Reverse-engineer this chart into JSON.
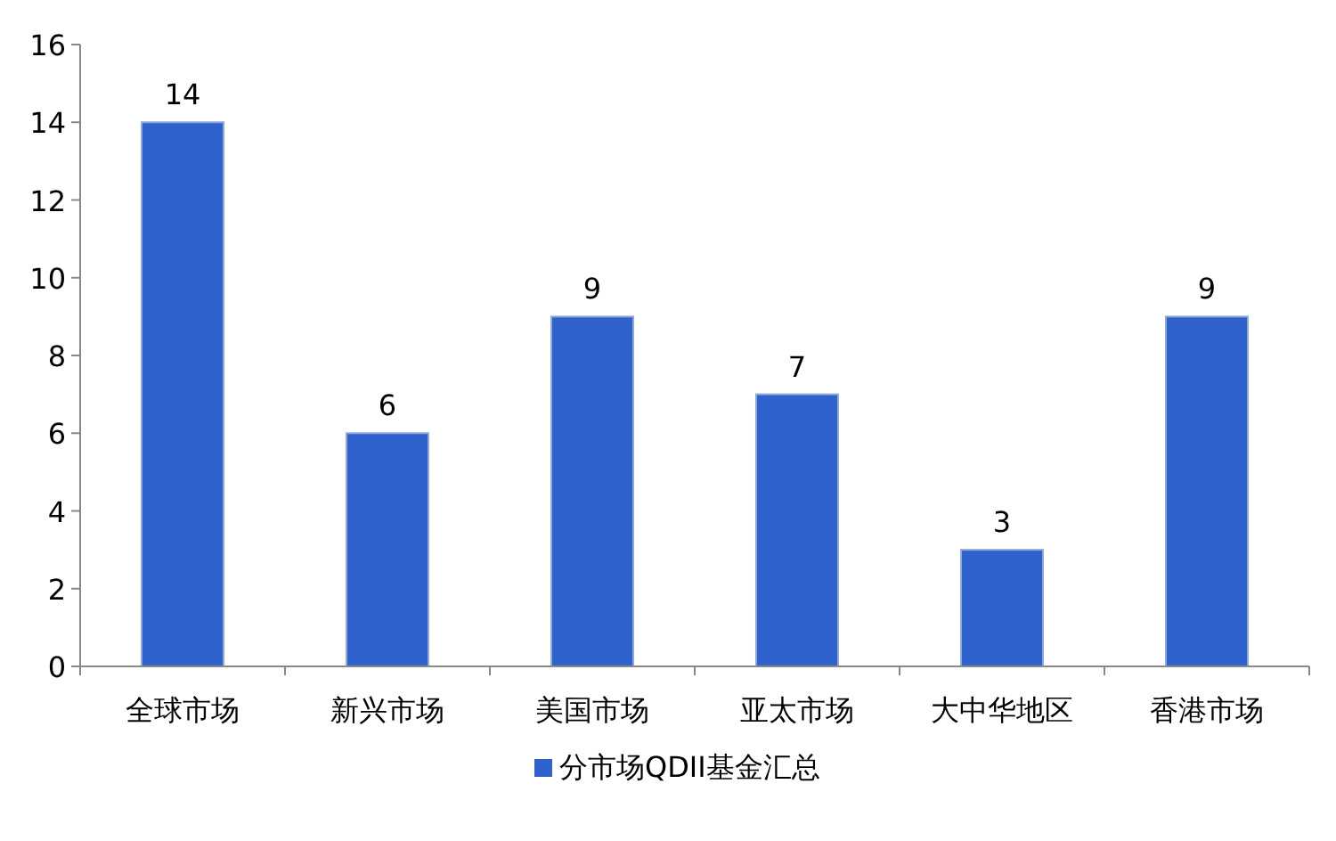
{
  "chart_data": {
    "type": "bar",
    "categories": [
      "全球市场",
      "新兴市场",
      "美国市场",
      "亚太市场",
      "大中华地区",
      "香港市场"
    ],
    "series": [
      {
        "name": "分市场QDII基金汇总",
        "color": "#2f62cc",
        "values": [
          14,
          6,
          9,
          7,
          3,
          9
        ]
      }
    ],
    "ylim": [
      0,
      16
    ],
    "yticks": [
      0,
      2,
      4,
      6,
      8,
      10,
      12,
      14,
      16
    ],
    "data_labels": true,
    "grid": false,
    "legend": "bottom"
  }
}
